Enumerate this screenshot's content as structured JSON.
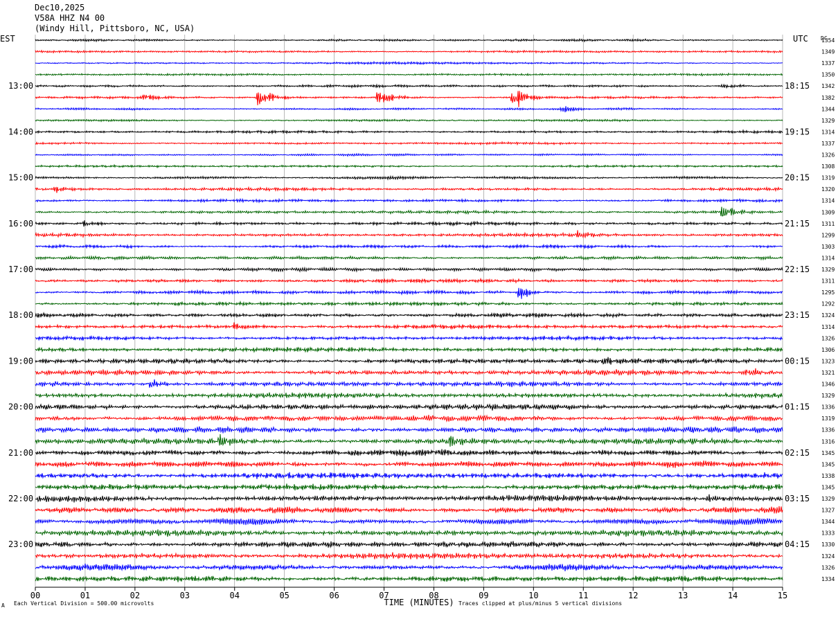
{
  "header": {
    "date": "Dec10,2025",
    "station": "V58A HHZ N4 00",
    "location": "(Windy Hill, Pittsboro, NC, USA)"
  },
  "left_axis_label": "EST",
  "right_axis_label": "UTC",
  "dc_label": "DC",
  "footer": {
    "scale": "Each Vertical Division =  500.00 microvolts",
    "clip": "Traces clipped at plus/minus 5 vertical divisions",
    "mark": "A"
  },
  "chart_data": {
    "type": "line",
    "subtype": "helicorder",
    "xlabel": "TIME (MINUTES)",
    "x_ticks": [
      "00",
      "01",
      "02",
      "03",
      "04",
      "05",
      "06",
      "07",
      "08",
      "09",
      "10",
      "11",
      "12",
      "13",
      "14",
      "15"
    ],
    "xlim": [
      0,
      15
    ],
    "hour_labels_est": [
      "13:00",
      "14:00",
      "15:00",
      "16:00",
      "17:00",
      "18:00",
      "19:00",
      "20:00",
      "21:00",
      "22:00",
      "23:00"
    ],
    "hour_labels_utc": [
      "18:15",
      "19:15",
      "20:15",
      "21:15",
      "22:15",
      "23:15",
      "00:15",
      "01:15",
      "02:15",
      "03:15",
      "04:15"
    ],
    "hour_label_first_row": 4,
    "rows_per_hour": 4,
    "trace_colors": [
      "#000000",
      "#ff0000",
      "#0000ff",
      "#006400"
    ],
    "dc_offsets": [
      1354,
      1349,
      1337,
      1350,
      1342,
      1382,
      1344,
      1329,
      1314,
      1337,
      1326,
      1308,
      1319,
      1320,
      1314,
      1309,
      1311,
      1299,
      1303,
      1314,
      1329,
      1311,
      1295,
      1292,
      1324,
      1314,
      1326,
      1306,
      1323,
      1321,
      1346,
      1329,
      1336,
      1319,
      1336,
      1316,
      1345,
      1345,
      1338,
      1345,
      1329,
      1327,
      1344,
      1333,
      1330,
      1324,
      1326,
      1334
    ],
    "noise_level_by_row": [
      0.6,
      0.6,
      0.6,
      0.6,
      0.7,
      0.6,
      0.6,
      0.6,
      0.7,
      0.6,
      0.6,
      0.6,
      0.8,
      0.8,
      0.8,
      0.8,
      0.9,
      0.9,
      0.9,
      0.9,
      1.0,
      1.0,
      1.0,
      1.0,
      1.1,
      1.1,
      1.1,
      1.2,
      1.4,
      1.4,
      1.4,
      1.4,
      1.6,
      1.6,
      1.6,
      1.6,
      1.7,
      1.7,
      1.7,
      1.7,
      1.7,
      1.7,
      1.7,
      1.7,
      1.6,
      1.6,
      1.6,
      1.6
    ],
    "events": [
      {
        "row": 5,
        "minute": 2.2,
        "amplitude": 1.2
      },
      {
        "row": 5,
        "minute": 4.5,
        "amplitude": 3.5
      },
      {
        "row": 5,
        "minute": 6.9,
        "amplitude": 3.0
      },
      {
        "row": 5,
        "minute": 9.6,
        "amplitude": 4.2
      },
      {
        "row": 4,
        "minute": 13.8,
        "amplitude": 1.0
      },
      {
        "row": 6,
        "minute": 10.6,
        "amplitude": 0.8
      },
      {
        "row": 13,
        "minute": 0.4,
        "amplitude": 1.0
      },
      {
        "row": 15,
        "minute": 13.8,
        "amplitude": 2.2
      },
      {
        "row": 16,
        "minute": 1.0,
        "amplitude": 1.2
      },
      {
        "row": 17,
        "minute": 10.9,
        "amplitude": 1.0
      },
      {
        "row": 22,
        "minute": 9.7,
        "amplitude": 2.2
      },
      {
        "row": 25,
        "minute": 4.0,
        "amplitude": 1.0
      },
      {
        "row": 28,
        "minute": 11.4,
        "amplitude": 1.0
      },
      {
        "row": 29,
        "minute": 14.3,
        "amplitude": 1.4
      },
      {
        "row": 30,
        "minute": 2.3,
        "amplitude": 1.5
      },
      {
        "row": 35,
        "minute": 3.7,
        "amplitude": 1.5
      },
      {
        "row": 35,
        "minute": 8.3,
        "amplitude": 1.6
      },
      {
        "row": 40,
        "minute": 13.5,
        "amplitude": 1.0
      }
    ]
  }
}
